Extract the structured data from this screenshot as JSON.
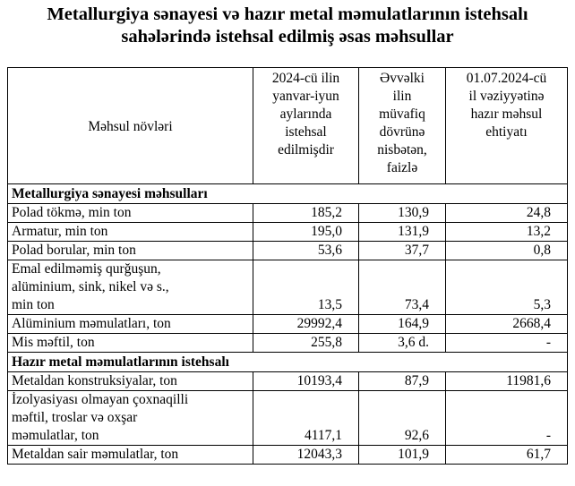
{
  "title": {
    "line1": "Metallurgiya sənayesi və hazır metal məmulatlarının istehsalı",
    "line2": "sahələrində istehsal edilmiş əsas məhsullar"
  },
  "table": {
    "headers": [
      "Məhsul növləri",
      [
        "2024-cü ilin",
        "yanvar-iyun",
        "aylarında",
        "istehsal",
        "edilmişdir"
      ],
      [
        "Əvvəlki",
        "ilin",
        "müvafiq",
        "dövrünə",
        "nisbətən,",
        "faizlə"
      ],
      [
        "01.07.2024-cü",
        "il vəziyyətinə",
        "hazır məhsul",
        "ehtiyatı"
      ]
    ],
    "sections": [
      {
        "title": "Metallurgiya sənayesi məhsulları",
        "rows": [
          {
            "name": [
              "Polad tökmə, min ton"
            ],
            "production": "185,2",
            "percent": "130,9",
            "stock": "24,8"
          },
          {
            "name": [
              "Armatur, min ton"
            ],
            "production": "195,0",
            "percent": "131,9",
            "stock": "13,2"
          },
          {
            "name": [
              "Polad borular, min ton"
            ],
            "production": "53,6",
            "percent": "37,7",
            "stock": "0,8"
          },
          {
            "name": [
              "Emal edilməmiş qurğuşun,",
              "alüminium, sink, nikel və s.,",
              "min ton"
            ],
            "production": "13,5",
            "percent": "73,4",
            "stock": "5,3"
          },
          {
            "name": [
              "Alüminium məmulatları, ton"
            ],
            "production": "29992,4",
            "percent": "164,9",
            "stock": "2668,4"
          },
          {
            "name": [
              "Mis məftil, ton"
            ],
            "production": "255,8",
            "percent": "3,6 d.",
            "stock": "-"
          }
        ]
      },
      {
        "title": "Hazır metal məmulatlarının istehsalı",
        "rows": [
          {
            "name": [
              "Metaldan konstruksiyalar, ton"
            ],
            "production": "10193,4",
            "percent": "87,9",
            "stock": "11981,6"
          },
          {
            "name": [
              "İzolyasiyası olmayan çoxnaqilli",
              "məftil, troslar və oxşar",
              "məmulatlar, ton"
            ],
            "production": "4117,1",
            "percent": "92,6",
            "stock": "-"
          },
          {
            "name": [
              "Metaldan sair məmulatlar, ton"
            ],
            "production": "12043,3",
            "percent": "101,9",
            "stock": "61,7"
          }
        ]
      }
    ]
  }
}
